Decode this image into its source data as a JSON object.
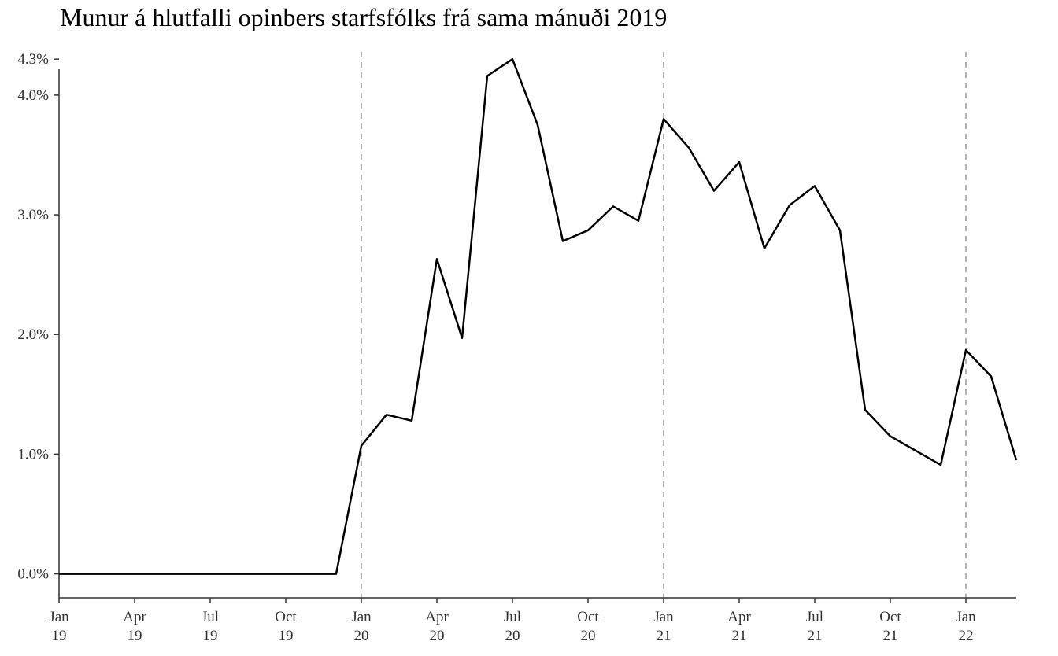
{
  "chart_data": {
    "type": "line",
    "title": "Munur á hlutfalli opinbers starfsfólks frá sama mánuði 2019",
    "xlabel": "",
    "ylabel": "",
    "x_start": "2019-01",
    "x_end": "2022-03",
    "x_ticks": [
      {
        "date": "2019-01",
        "line1": "Jan",
        "line2": "19"
      },
      {
        "date": "2019-04",
        "line1": "Apr",
        "line2": "19"
      },
      {
        "date": "2019-07",
        "line1": "Jul",
        "line2": "19"
      },
      {
        "date": "2019-10",
        "line1": "Oct",
        "line2": "19"
      },
      {
        "date": "2020-01",
        "line1": "Jan",
        "line2": "20"
      },
      {
        "date": "2020-04",
        "line1": "Apr",
        "line2": "20"
      },
      {
        "date": "2020-07",
        "line1": "Jul",
        "line2": "20"
      },
      {
        "date": "2020-10",
        "line1": "Oct",
        "line2": "20"
      },
      {
        "date": "2021-01",
        "line1": "Jan",
        "line2": "21"
      },
      {
        "date": "2021-04",
        "line1": "Apr",
        "line2": "21"
      },
      {
        "date": "2021-07",
        "line1": "Jul",
        "line2": "21"
      },
      {
        "date": "2021-10",
        "line1": "Oct",
        "line2": "21"
      },
      {
        "date": "2022-01",
        "line1": "Jan",
        "line2": "22"
      }
    ],
    "y_ticks": [
      {
        "value": 0.0,
        "label": "0.0%"
      },
      {
        "value": 1.0,
        "label": "1.0%"
      },
      {
        "value": 2.0,
        "label": "2.0%"
      },
      {
        "value": 3.0,
        "label": "3.0%"
      },
      {
        "value": 4.0,
        "label": "4.0%"
      },
      {
        "value": 4.3,
        "label": "4.3%"
      }
    ],
    "ylim": [
      -0.2,
      4.4
    ],
    "grid": false,
    "reference_lines": {
      "dates": [
        "2020-01",
        "2021-01",
        "2022-01"
      ],
      "style": "dashed",
      "color": "#b3b3b3"
    },
    "series": [
      {
        "color": "#000000",
        "x": [
          "2019-01",
          "2019-02",
          "2019-03",
          "2019-04",
          "2019-05",
          "2019-06",
          "2019-07",
          "2019-08",
          "2019-09",
          "2019-10",
          "2019-11",
          "2019-12",
          "2020-01",
          "2020-02",
          "2020-03",
          "2020-04",
          "2020-05",
          "2020-06",
          "2020-07",
          "2020-08",
          "2020-09",
          "2020-10",
          "2020-11",
          "2020-12",
          "2021-01",
          "2021-02",
          "2021-03",
          "2021-04",
          "2021-05",
          "2021-06",
          "2021-07",
          "2021-08",
          "2021-09",
          "2021-10",
          "2021-11",
          "2021-12",
          "2022-01",
          "2022-02",
          "2022-03"
        ],
        "values": [
          0.0,
          0.0,
          0.0,
          0.0,
          0.0,
          0.0,
          0.0,
          0.0,
          0.0,
          0.0,
          0.0,
          0.0,
          1.07,
          1.33,
          1.28,
          2.63,
          1.97,
          4.16,
          4.3,
          3.75,
          2.78,
          2.87,
          3.07,
          2.95,
          3.8,
          3.56,
          3.2,
          3.44,
          2.72,
          3.08,
          3.24,
          2.87,
          1.37,
          1.15,
          1.03,
          0.91,
          1.87,
          1.65,
          0.95
        ]
      }
    ]
  }
}
